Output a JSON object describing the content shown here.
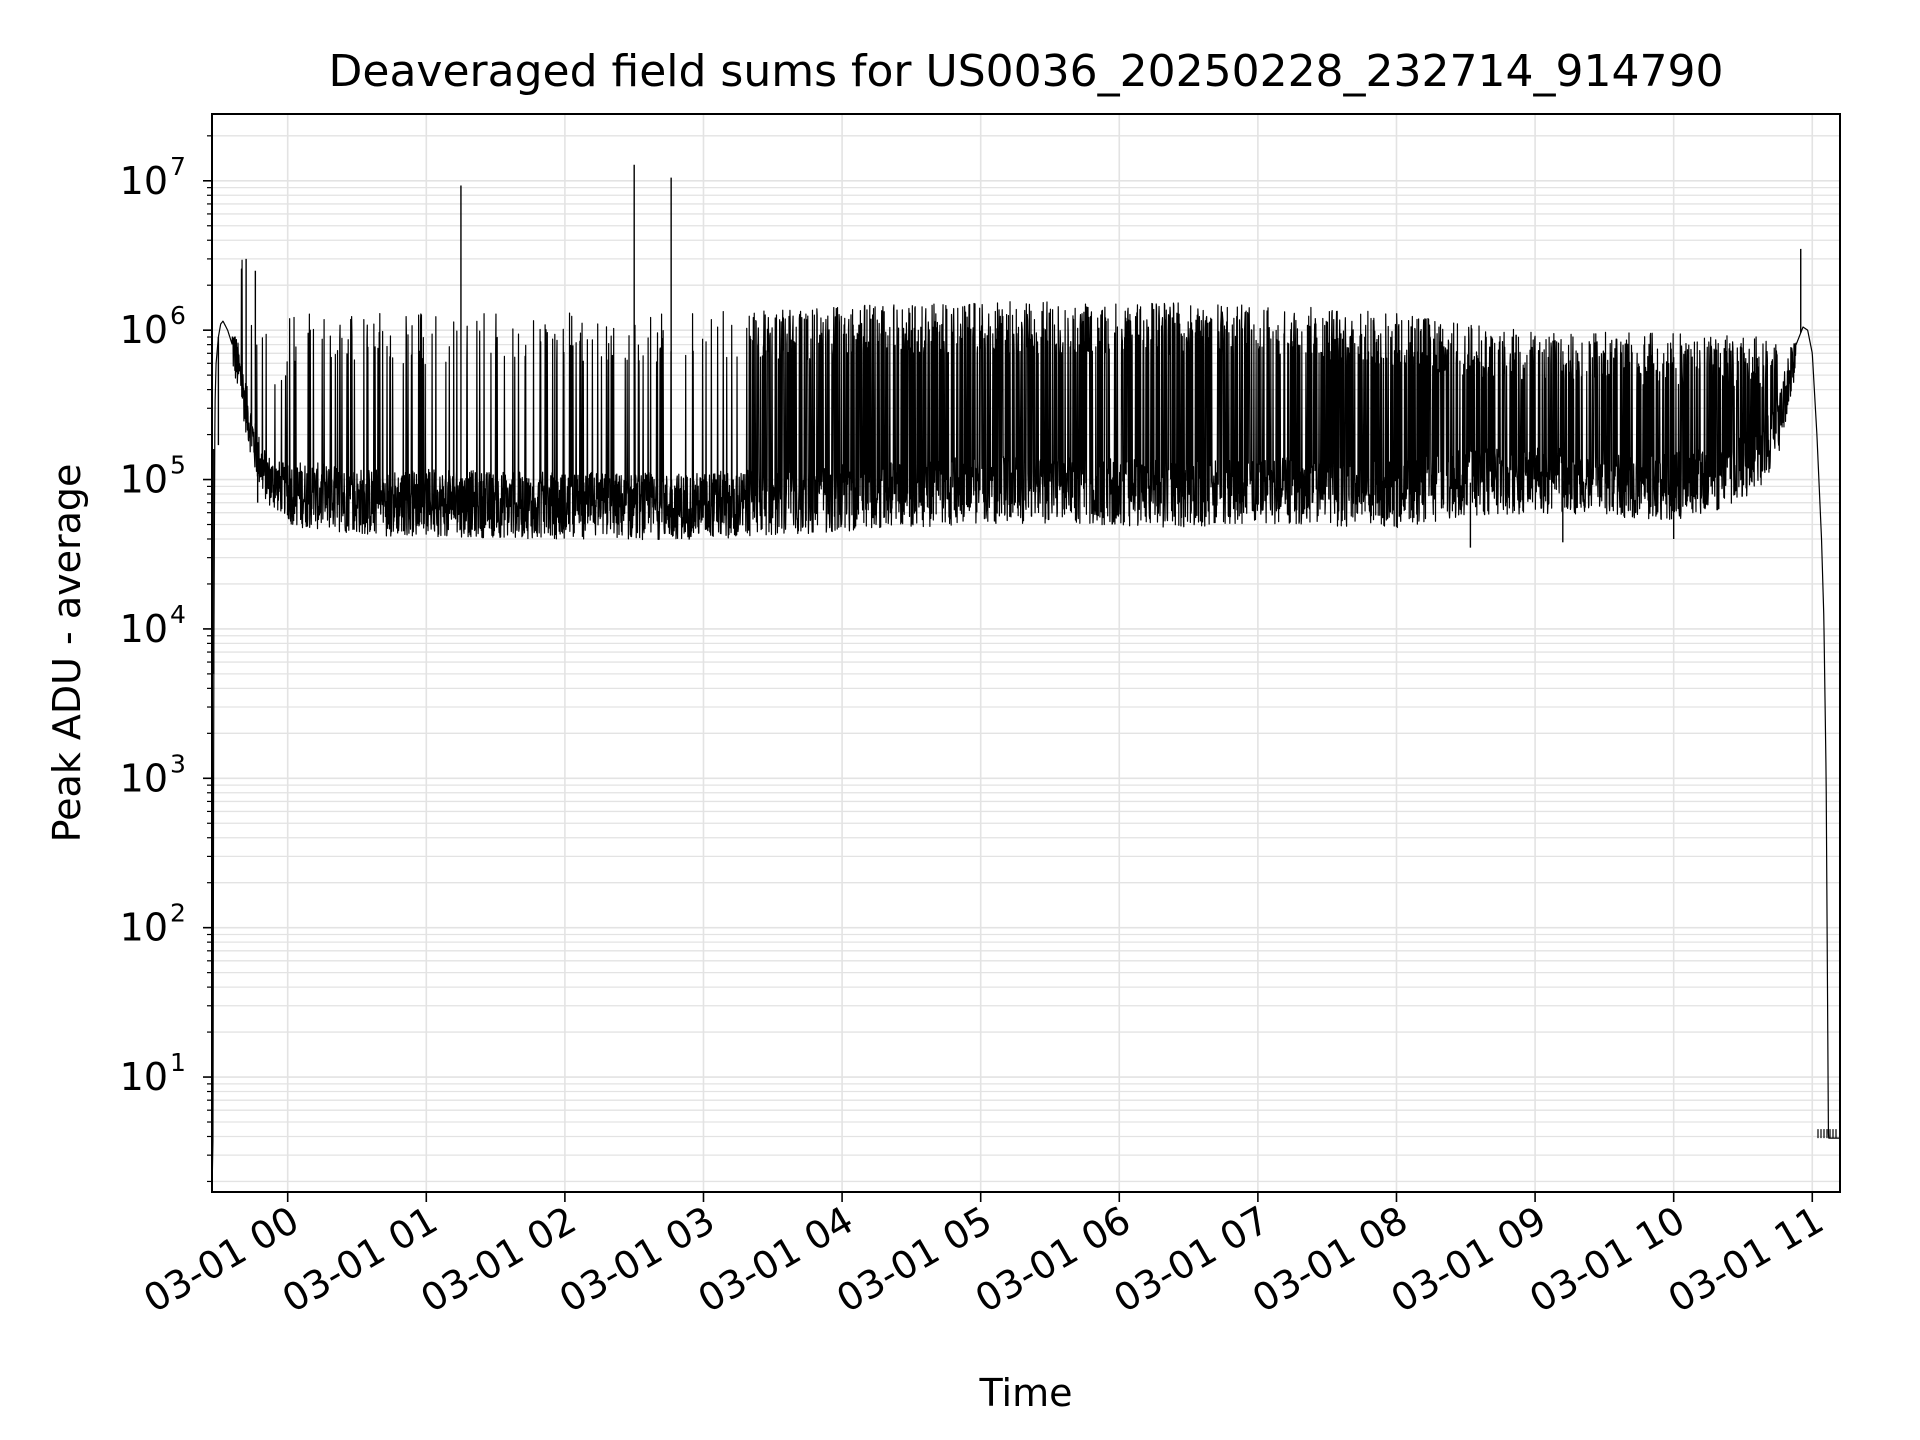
{
  "colors": {
    "background": "#ffffff",
    "line": "#000000",
    "grid": "#e3e3e3",
    "axes": "#000000"
  },
  "chart_data": {
    "type": "line",
    "title": "Deaveraged field sums for US0036_20250228_232714_914790",
    "xlabel": "Time",
    "ylabel": "Peak ADU - average",
    "y_scale": "log",
    "ylim": [
      1.7,
      28000000
    ],
    "xlim": [
      "2025-02-28 23:27:14",
      "2025-03-01 11:12:00"
    ],
    "grid": true,
    "x_tick_labels": [
      "03-01 00",
      "03-01 01",
      "03-01 02",
      "03-01 03",
      "03-01 04",
      "03-01 05",
      "03-01 06",
      "03-01 07",
      "03-01 08",
      "03-01 09",
      "03-01 10",
      "03-01 11"
    ],
    "x_ticks": [
      "2025-03-01 00:00",
      "2025-03-01 01:00",
      "2025-03-01 02:00",
      "2025-03-01 03:00",
      "2025-03-01 04:00",
      "2025-03-01 05:00",
      "2025-03-01 06:00",
      "2025-03-01 07:00",
      "2025-03-01 08:00",
      "2025-03-01 09:00",
      "2025-03-01 10:00",
      "2025-03-01 11:00"
    ],
    "y_ticks": [
      {
        "value": 10,
        "base": "10",
        "exp": "1"
      },
      {
        "value": 100,
        "base": "10",
        "exp": "2"
      },
      {
        "value": 1000,
        "base": "10",
        "exp": "3"
      },
      {
        "value": 10000,
        "base": "10",
        "exp": "4"
      },
      {
        "value": 100000,
        "base": "10",
        "exp": "5"
      },
      {
        "value": 1000000,
        "base": "10",
        "exp": "6"
      },
      {
        "value": 10000000,
        "base": "10",
        "exp": "7"
      }
    ],
    "series": [
      {
        "x": [
          "2025-02-28 23:27:14",
          "2025-02-28 23:27:40",
          "2025-02-28 23:28:00",
          "2025-02-28 23:28:30",
          "2025-02-28 23:29:00",
          "2025-02-28 23:30:00",
          "2025-02-28 23:31:00",
          "2025-02-28 23:32:00",
          "2025-02-28 23:34:00",
          "2025-02-28 23:36:00",
          "2025-02-28 23:38:00",
          "2025-02-28 23:40:00",
          "2025-02-28 23:42:00",
          "2025-02-28 23:44:00",
          "2025-02-28 23:46:00",
          "2025-02-28 23:48:00",
          "2025-02-28 23:50:00",
          "2025-02-28 23:53:00",
          "2025-02-28 23:56:00",
          "2025-03-01 00:00:00",
          "2025-03-01 00:05:00",
          "2025-03-01 00:10:00",
          "2025-03-01 00:20:00",
          "2025-03-01 00:30:00",
          "2025-03-01 00:45:00",
          "2025-03-01 01:00:00",
          "2025-03-01 01:30:00",
          "2025-03-01 02:00:00",
          "2025-03-01 02:30:00",
          "2025-03-01 03:00:00",
          "2025-03-01 03:30:00",
          "2025-03-01 04:00:00",
          "2025-03-01 04:30:00",
          "2025-03-01 05:00:00",
          "2025-03-01 05:30:00",
          "2025-03-01 06:00:00",
          "2025-03-01 06:30:00",
          "2025-03-01 07:00:00",
          "2025-03-01 07:30:00",
          "2025-03-01 08:00:00",
          "2025-03-01 08:30:00",
          "2025-03-01 09:00:00",
          "2025-03-01 09:30:00",
          "2025-03-01 10:00:00",
          "2025-03-01 10:15:00",
          "2025-03-01 10:30:00",
          "2025-03-01 10:40:00",
          "2025-03-01 10:46:00",
          "2025-03-01 10:50:00",
          "2025-03-01 10:53:00",
          "2025-03-01 10:56:00",
          "2025-03-01 10:58:00",
          "2025-03-01 11:00:00",
          "2025-03-01 11:02:00",
          "2025-03-01 11:04:00",
          "2025-03-01 11:05:00",
          "2025-03-01 11:06:00",
          "2025-03-01 11:07:00",
          "2025-03-01 11:12:00"
        ],
        "y": [
          1.7,
          3.9,
          5000,
          300000,
          600000,
          900000,
          1100000,
          1150000,
          1000000,
          800000,
          600000,
          450000,
          300000,
          220000,
          160000,
          130000,
          110000,
          95000,
          90000,
          85000,
          80000,
          78000,
          75000,
          72000,
          70000,
          70000,
          68000,
          67000,
          66000,
          67000,
          70000,
          75000,
          80000,
          85000,
          85000,
          82000,
          80000,
          85000,
          82000,
          80000,
          95000,
          100000,
          95000,
          90000,
          100000,
          120000,
          150000,
          250000,
          500000,
          800000,
          1050000,
          1000000,
          700000,
          200000,
          40000,
          12000,
          1000,
          3.9,
          3.9
        ]
      }
    ],
    "spikes": [
      {
        "x": "2025-02-28 23:28:00",
        "y": 160000
      },
      {
        "x": "2025-02-28 23:30:00",
        "y": 170000
      },
      {
        "x": "2025-02-28 23:42:00",
        "y": 3000000
      },
      {
        "x": "2025-02-28 23:46:00",
        "y": 2500000
      },
      {
        "x": "2025-02-28 23:47:00",
        "y": 70000
      },
      {
        "x": "2025-03-01 01:15:00",
        "y": 9300000
      },
      {
        "x": "2025-03-01 02:30:00",
        "y": 12800000
      },
      {
        "x": "2025-03-01 02:46:00",
        "y": 10500000
      },
      {
        "x": "2025-03-01 10:55:00",
        "y": 3500000
      },
      {
        "x": "2025-03-01 08:32:00",
        "y": 35000
      },
      {
        "x": "2025-03-01 09:12:00",
        "y": 38000
      },
      {
        "x": "2025-03-01 10:00:00",
        "y": 40000
      }
    ],
    "upper_envelope": {
      "x": [
        "2025-03-01 00:00:00",
        "2025-03-01 01:00:00",
        "2025-03-01 02:00:00",
        "2025-03-01 03:00:00",
        "2025-03-01 03:30:00",
        "2025-03-01 04:00:00",
        "2025-03-01 04:30:00",
        "2025-03-01 05:00:00",
        "2025-03-01 06:00:00",
        "2025-03-01 07:00:00",
        "2025-03-01 08:00:00",
        "2025-03-01 08:30:00",
        "2025-03-01 09:00:00",
        "2025-03-01 10:00:00",
        "2025-03-01 10:45:00"
      ],
      "y": [
        1300000,
        1300000,
        1350000,
        1350000,
        1400000,
        1450000,
        1500000,
        1550000,
        1550000,
        1500000,
        1300000,
        1100000,
        1000000,
        950000,
        900000
      ]
    }
  }
}
